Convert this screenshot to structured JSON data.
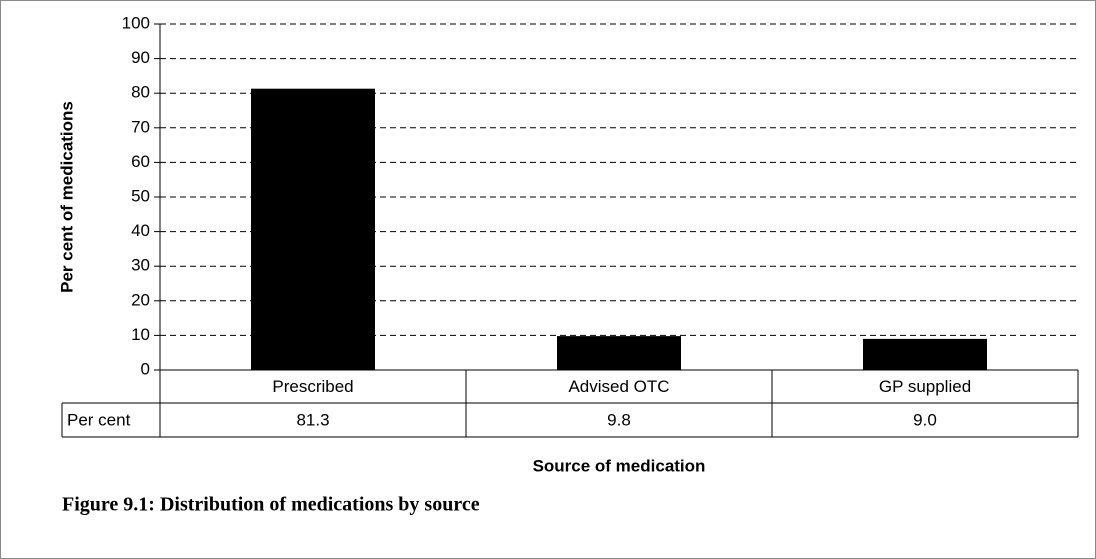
{
  "chart_data": {
    "type": "bar",
    "caption": "Figure 9.1: Distribution of medications by source",
    "xlabel": "Source of medication",
    "ylabel": "Per cent of medications",
    "categories": [
      "Prescribed",
      "Advised OTC",
      "GP supplied"
    ],
    "series": [
      {
        "name": "Per cent",
        "color": "#000000",
        "values": [
          81.3,
          9.8,
          9.0
        ],
        "value_labels": [
          "81.3",
          "9.8",
          "9.0"
        ]
      }
    ],
    "ylim": [
      0,
      100
    ],
    "yticks": [
      0,
      10,
      20,
      30,
      40,
      50,
      60,
      70,
      80,
      90,
      100
    ],
    "grid": true
  }
}
